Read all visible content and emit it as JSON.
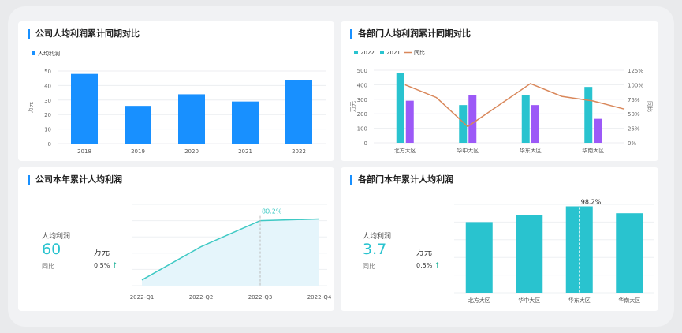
{
  "colors": {
    "blue": "#1890ff",
    "teal": "#29c3cf",
    "purple": "#9c59f7",
    "orange": "#d9875a",
    "area": "#e5f5fb",
    "line": "#3ec9c4"
  },
  "chart_data": [
    {
      "type": "bar",
      "title": "公司人均利润累计同期对比",
      "legend": [
        "人均利润"
      ],
      "ylabel": "万元",
      "categories": [
        "2018",
        "2019",
        "2020",
        "2021",
        "2022"
      ],
      "values": [
        48,
        26,
        34,
        29,
        44
      ],
      "yticks": [
        "0",
        "10",
        "20",
        "30",
        "40",
        "50"
      ],
      "ylim": [
        0,
        50
      ]
    },
    {
      "type": "bar",
      "title": "各部门人均利润累计同期对比",
      "legend": [
        "2022",
        "2021",
        "同比"
      ],
      "ylabel": "万元",
      "y2label": "同比",
      "categories": [
        "北方大区",
        "华中大区",
        "华东大区",
        "华南大区"
      ],
      "series": [
        {
          "name": "2022",
          "values": [
            480,
            260,
            330,
            385
          ]
        },
        {
          "name": "2021",
          "values": [
            290,
            330,
            260,
            165
          ]
        },
        {
          "name": "同比",
          "values": [
            1.0,
            0.28,
            1.02,
            0.72
          ],
          "mid": [
            0.78,
            null,
            0.8,
            0.58
          ]
        }
      ],
      "yticks": [
        "0",
        "100",
        "200",
        "300",
        "400",
        "500"
      ],
      "y2ticks": [
        "0%",
        "25%",
        "50%",
        "75%",
        "100%",
        "125%"
      ],
      "ylim": [
        0,
        500
      ]
    },
    {
      "type": "area",
      "title": "公司本年累计人均利润",
      "categories": [
        "2022-Q1",
        "2022-Q2",
        "2022-Q3",
        "2022-Q4"
      ],
      "values": [
        7,
        48,
        80,
        82
      ],
      "ylim": [
        0,
        100
      ],
      "annotation": "80.2%",
      "kpi": {
        "label": "人均利润",
        "value": "60",
        "unit": "万元",
        "compare_label": "同比",
        "compare_value": "0.5%",
        "arrow": "↑"
      }
    },
    {
      "type": "bar",
      "title": "各部门本年累计人均利润",
      "categories": [
        "北方大区",
        "华中大区",
        "华东大区",
        "华南大区"
      ],
      "values": [
        72,
        79,
        88,
        81
      ],
      "ylim": [
        0,
        90
      ],
      "annotation": "98.2%",
      "kpi": {
        "label": "人均利润",
        "value": "3.7",
        "unit": "万元",
        "compare_label": "同比",
        "compare_value": "0.5%",
        "arrow": "↑"
      }
    }
  ]
}
